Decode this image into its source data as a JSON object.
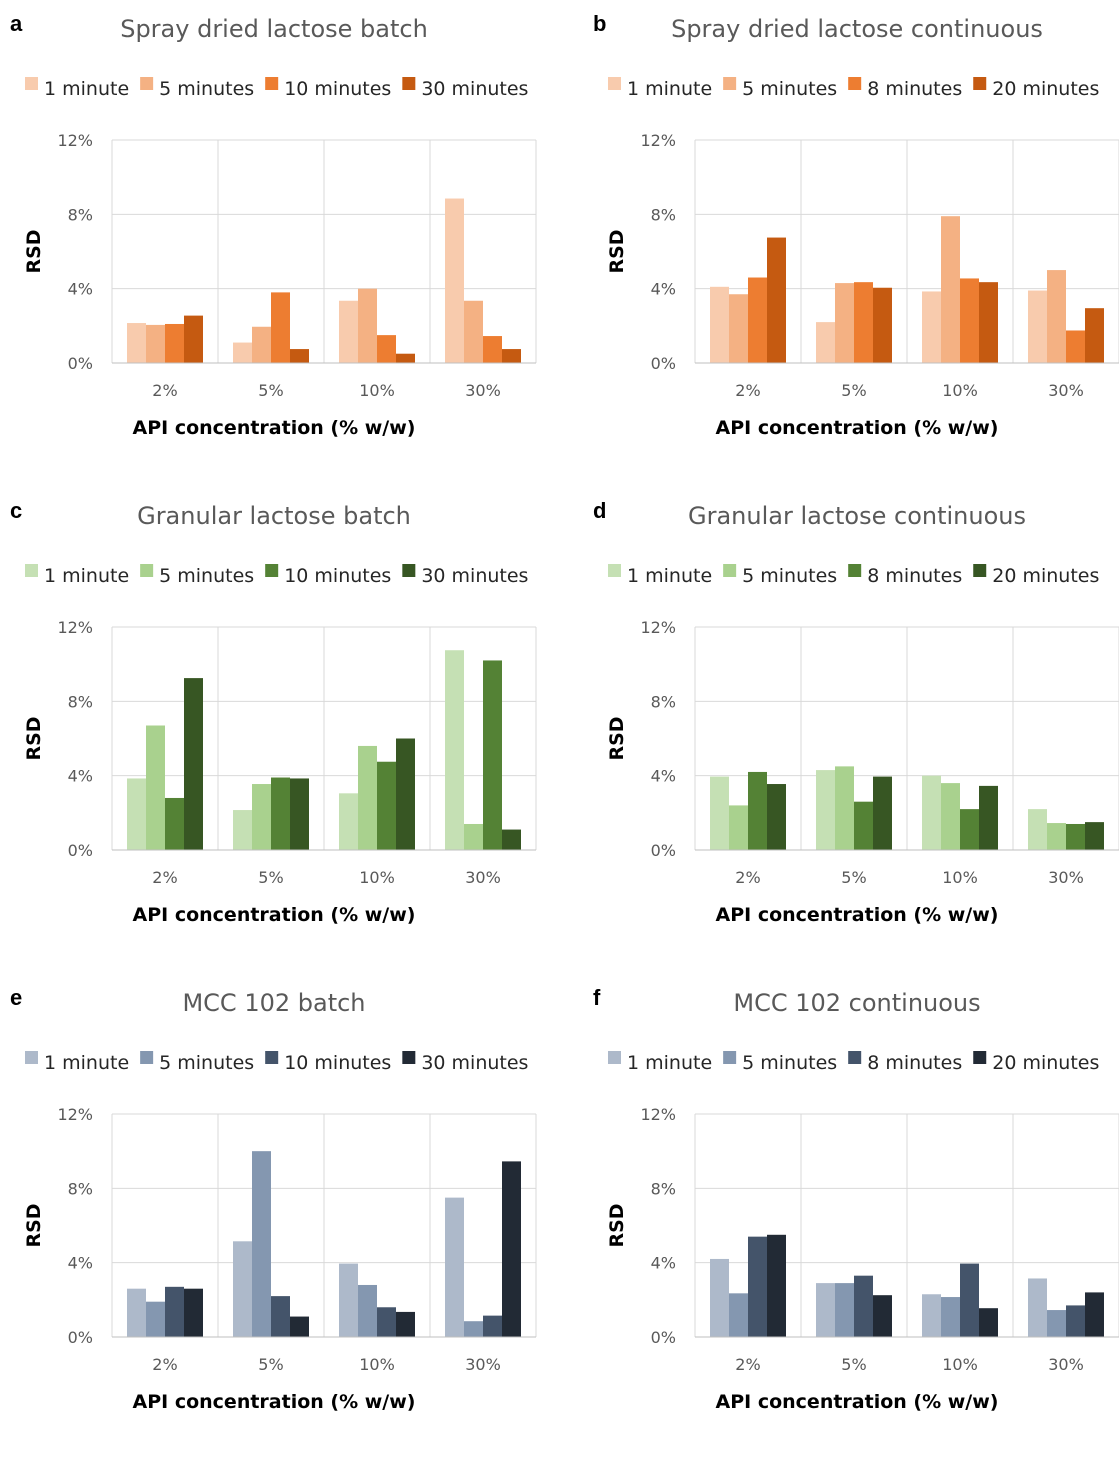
{
  "chart_data": [
    {
      "panel": "a",
      "type": "bar",
      "title": "Spray dried lactose batch",
      "xlabel": "API concentration (% w/w)",
      "ylabel": "RSD",
      "ylim": [
        0,
        12
      ],
      "yticks": [
        "0%",
        "4%",
        "8%",
        "12%"
      ],
      "ytick_values": [
        0,
        4,
        8,
        12
      ],
      "grid": true,
      "legend": "top",
      "categories": [
        "2%",
        "5%",
        "10%",
        "30%"
      ],
      "series": [
        {
          "name": "1 minute",
          "color": "#f8cbad",
          "values": [
            2.15,
            1.1,
            3.35,
            8.85
          ]
        },
        {
          "name": "5 minutes",
          "color": "#f4b183",
          "values": [
            2.05,
            1.95,
            4.0,
            3.35
          ]
        },
        {
          "name": "10 minutes",
          "color": "#ed7d31",
          "values": [
            2.1,
            3.8,
            1.5,
            1.45
          ]
        },
        {
          "name": "30 minutes",
          "color": "#c55a11",
          "values": [
            2.55,
            0.75,
            0.5,
            0.75
          ]
        }
      ]
    },
    {
      "panel": "b",
      "type": "bar",
      "title": "Spray dried lactose continuous",
      "xlabel": "API concentration (% w/w)",
      "ylabel": "RSD",
      "ylim": [
        0,
        12
      ],
      "yticks": [
        "0%",
        "4%",
        "8%",
        "12%"
      ],
      "ytick_values": [
        0,
        4,
        8,
        12
      ],
      "grid": true,
      "legend": "top",
      "categories": [
        "2%",
        "5%",
        "10%",
        "30%"
      ],
      "series": [
        {
          "name": "1 minute",
          "color": "#f8cbad",
          "values": [
            4.1,
            2.2,
            3.85,
            3.9
          ]
        },
        {
          "name": "5 minutes",
          "color": "#f4b183",
          "values": [
            3.7,
            4.3,
            7.9,
            5.0
          ]
        },
        {
          "name": "8 minutes",
          "color": "#ed7d31",
          "values": [
            4.6,
            4.35,
            4.55,
            1.75
          ]
        },
        {
          "name": "20 minutes",
          "color": "#c55a11",
          "values": [
            6.75,
            4.05,
            4.35,
            2.95
          ]
        }
      ]
    },
    {
      "panel": "c",
      "type": "bar",
      "title": "Granular lactose batch",
      "xlabel": "API concentration (% w/w)",
      "ylabel": "RSD",
      "ylim": [
        0,
        12
      ],
      "yticks": [
        "0%",
        "4%",
        "8%",
        "12%"
      ],
      "ytick_values": [
        0,
        4,
        8,
        12
      ],
      "grid": true,
      "legend": "top",
      "categories": [
        "2%",
        "5%",
        "10%",
        "30%"
      ],
      "series": [
        {
          "name": "1 minute",
          "color": "#c5e0b4",
          "values": [
            3.85,
            2.15,
            3.05,
            10.75
          ]
        },
        {
          "name": "5 minutes",
          "color": "#a9d18e",
          "values": [
            6.7,
            3.55,
            5.6,
            1.4
          ]
        },
        {
          "name": "10 minutes",
          "color": "#548235",
          "values": [
            2.8,
            3.9,
            4.75,
            10.2
          ]
        },
        {
          "name": "30 minutes",
          "color": "#375623",
          "values": [
            9.25,
            3.85,
            6.0,
            1.1
          ]
        }
      ]
    },
    {
      "panel": "d",
      "type": "bar",
      "title": "Granular lactose continuous",
      "xlabel": "API concentration (% w/w)",
      "ylabel": "RSD",
      "ylim": [
        0,
        12
      ],
      "yticks": [
        "0%",
        "4%",
        "8%",
        "12%"
      ],
      "ytick_values": [
        0,
        4,
        8,
        12
      ],
      "grid": true,
      "legend": "top",
      "categories": [
        "2%",
        "5%",
        "10%",
        "30%"
      ],
      "series": [
        {
          "name": "1 minute",
          "color": "#c5e0b4",
          "values": [
            3.95,
            4.3,
            4.0,
            2.2
          ]
        },
        {
          "name": "5 minutes",
          "color": "#a9d18e",
          "values": [
            2.4,
            4.5,
            3.6,
            1.45
          ]
        },
        {
          "name": "8 minutes",
          "color": "#548235",
          "values": [
            4.2,
            2.6,
            2.2,
            1.4
          ]
        },
        {
          "name": "20 minutes",
          "color": "#375623",
          "values": [
            3.55,
            3.95,
            3.45,
            1.5
          ]
        }
      ]
    },
    {
      "panel": "e",
      "type": "bar",
      "title": "MCC 102 batch",
      "xlabel": "API concentration (% w/w)",
      "ylabel": "RSD",
      "ylim": [
        0,
        12
      ],
      "yticks": [
        "0%",
        "4%",
        "8%",
        "12%"
      ],
      "ytick_values": [
        0,
        4,
        8,
        12
      ],
      "grid": true,
      "legend": "top",
      "categories": [
        "2%",
        "5%",
        "10%",
        "30%"
      ],
      "series": [
        {
          "name": "1 minute",
          "color": "#adb9ca",
          "values": [
            2.6,
            5.15,
            3.95,
            7.5
          ]
        },
        {
          "name": "5 minutes",
          "color": "#8497b0",
          "values": [
            1.9,
            10.0,
            2.8,
            0.85
          ]
        },
        {
          "name": "10 minutes",
          "color": "#44546a",
          "values": [
            2.7,
            2.2,
            1.6,
            1.15
          ]
        },
        {
          "name": "30 minutes",
          "color": "#222a35",
          "values": [
            2.6,
            1.1,
            1.35,
            9.45
          ]
        }
      ]
    },
    {
      "panel": "f",
      "type": "bar",
      "title": "MCC 102 continuous",
      "xlabel": "API concentration (% w/w)",
      "ylabel": "RSD",
      "ylim": [
        0,
        12
      ],
      "yticks": [
        "0%",
        "4%",
        "8%",
        "12%"
      ],
      "ytick_values": [
        0,
        4,
        8,
        12
      ],
      "grid": true,
      "legend": "top",
      "categories": [
        "2%",
        "5%",
        "10%",
        "30%"
      ],
      "series": [
        {
          "name": "1 minute",
          "color": "#adb9ca",
          "values": [
            4.2,
            2.9,
            2.3,
            3.15
          ]
        },
        {
          "name": "5 minutes",
          "color": "#8497b0",
          "values": [
            2.35,
            2.9,
            2.15,
            1.45
          ]
        },
        {
          "name": "8 minutes",
          "color": "#44546a",
          "values": [
            5.4,
            3.3,
            3.95,
            1.7
          ]
        },
        {
          "name": "20 minutes",
          "color": "#222a35",
          "values": [
            5.5,
            2.25,
            1.55,
            2.4
          ]
        }
      ]
    }
  ]
}
